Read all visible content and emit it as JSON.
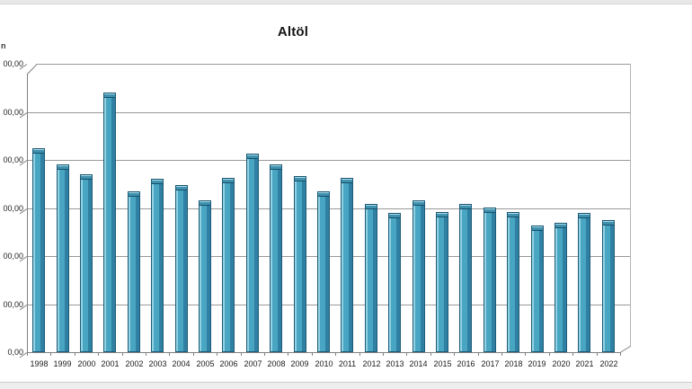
{
  "window": {
    "top_strip_color": "#e8e8e8",
    "bottom_strip_color": "#eeeeee"
  },
  "chart": {
    "title": "Altöl",
    "y_axis_unit_fragment": "n",
    "truncation_note": "y-axis unit label and tick labels are cut off at the left edge of the screenshot"
  },
  "chart_data": {
    "type": "bar",
    "style": "3d-column",
    "title": "Altöl",
    "categories": [
      "1998",
      "1999",
      "2000",
      "2001",
      "2002",
      "2003",
      "2004",
      "2005",
      "2006",
      "2007",
      "2008",
      "2009",
      "2010",
      "2011",
      "2012",
      "2013",
      "2014",
      "2015",
      "2016",
      "2017",
      "2018",
      "2019",
      "2020",
      "2021",
      "2022"
    ],
    "values": [
      4.24,
      3.91,
      3.7,
      5.4,
      3.35,
      3.61,
      3.48,
      3.16,
      3.63,
      4.13,
      3.91,
      3.66,
      3.35,
      3.63,
      3.08,
      2.9,
      3.16,
      2.92,
      3.08,
      3.01,
      2.92,
      2.64,
      2.69,
      2.9,
      2.75
    ],
    "y_tick_labels": [
      "00,00",
      "00,00",
      "00,00",
      "00,00",
      "00,00",
      "00,00",
      "0,00"
    ],
    "ylim": [
      0,
      6
    ],
    "y_unit_note": "axis numbers truncated by image edge; values measured in gridline units (1 unit = 1 gridline step)",
    "xlabel": "",
    "ylabel": "n",
    "grid": true,
    "legend": false,
    "bar_color": "#49a6c3",
    "bar_highlight": "#93d2e2",
    "bar_shadow": "#2f80a2",
    "bar_border": "#1d5a77",
    "gridline_color": "#999999",
    "axis_color": "#808080"
  }
}
